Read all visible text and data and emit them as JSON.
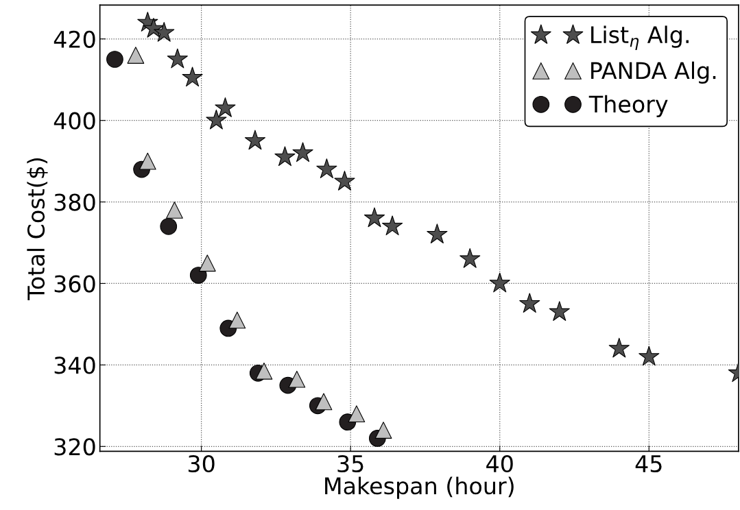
{
  "chart_data": {
    "type": "scatter",
    "xlabel": "Makespan (hour)",
    "ylabel": "Total Cost($)",
    "xlim": [
      26.6,
      48.0
    ],
    "ylim": [
      318.8,
      428.3
    ],
    "xticks": [
      30,
      35,
      40,
      45
    ],
    "yticks": [
      320,
      340,
      360,
      380,
      400,
      420
    ],
    "grid": true,
    "legend": "top right",
    "series": [
      {
        "name": "List$_{η}$ Alg.",
        "color": "#4d4d4d",
        "marker": "star",
        "x": [
          28.2,
          28.4,
          28.75,
          29.2,
          29.7,
          30.5,
          30.8,
          31.8,
          32.8,
          33.4,
          34.2,
          34.8,
          35.8,
          36.4,
          37.9,
          39.0,
          40.0,
          41.0,
          42.0,
          44.0,
          45.0,
          48.0
        ],
        "values": [
          424,
          422.5,
          421.5,
          415,
          410.5,
          400,
          403,
          395,
          391,
          392,
          388,
          385,
          376,
          374,
          372,
          366,
          360,
          355,
          353,
          344,
          342,
          338
        ]
      },
      {
        "name": "PANDA Alg.",
        "color": "#bfbfbf",
        "marker": "triangle",
        "x": [
          27.8,
          28.2,
          29.1,
          30.2,
          31.2,
          32.1,
          33.2,
          34.1,
          35.2,
          36.1
        ],
        "values": [
          416,
          390,
          378,
          365,
          351,
          338.5,
          336.5,
          331,
          328,
          324
        ]
      },
      {
        "name": "Theory",
        "color": "#231f20",
        "marker": "circle",
        "x": [
          27.1,
          28.0,
          28.9,
          29.9,
          30.9,
          31.9,
          32.9,
          33.9,
          34.9,
          35.9
        ],
        "values": [
          415,
          388,
          374,
          362,
          349,
          338,
          335,
          330,
          326,
          322
        ]
      }
    ]
  }
}
